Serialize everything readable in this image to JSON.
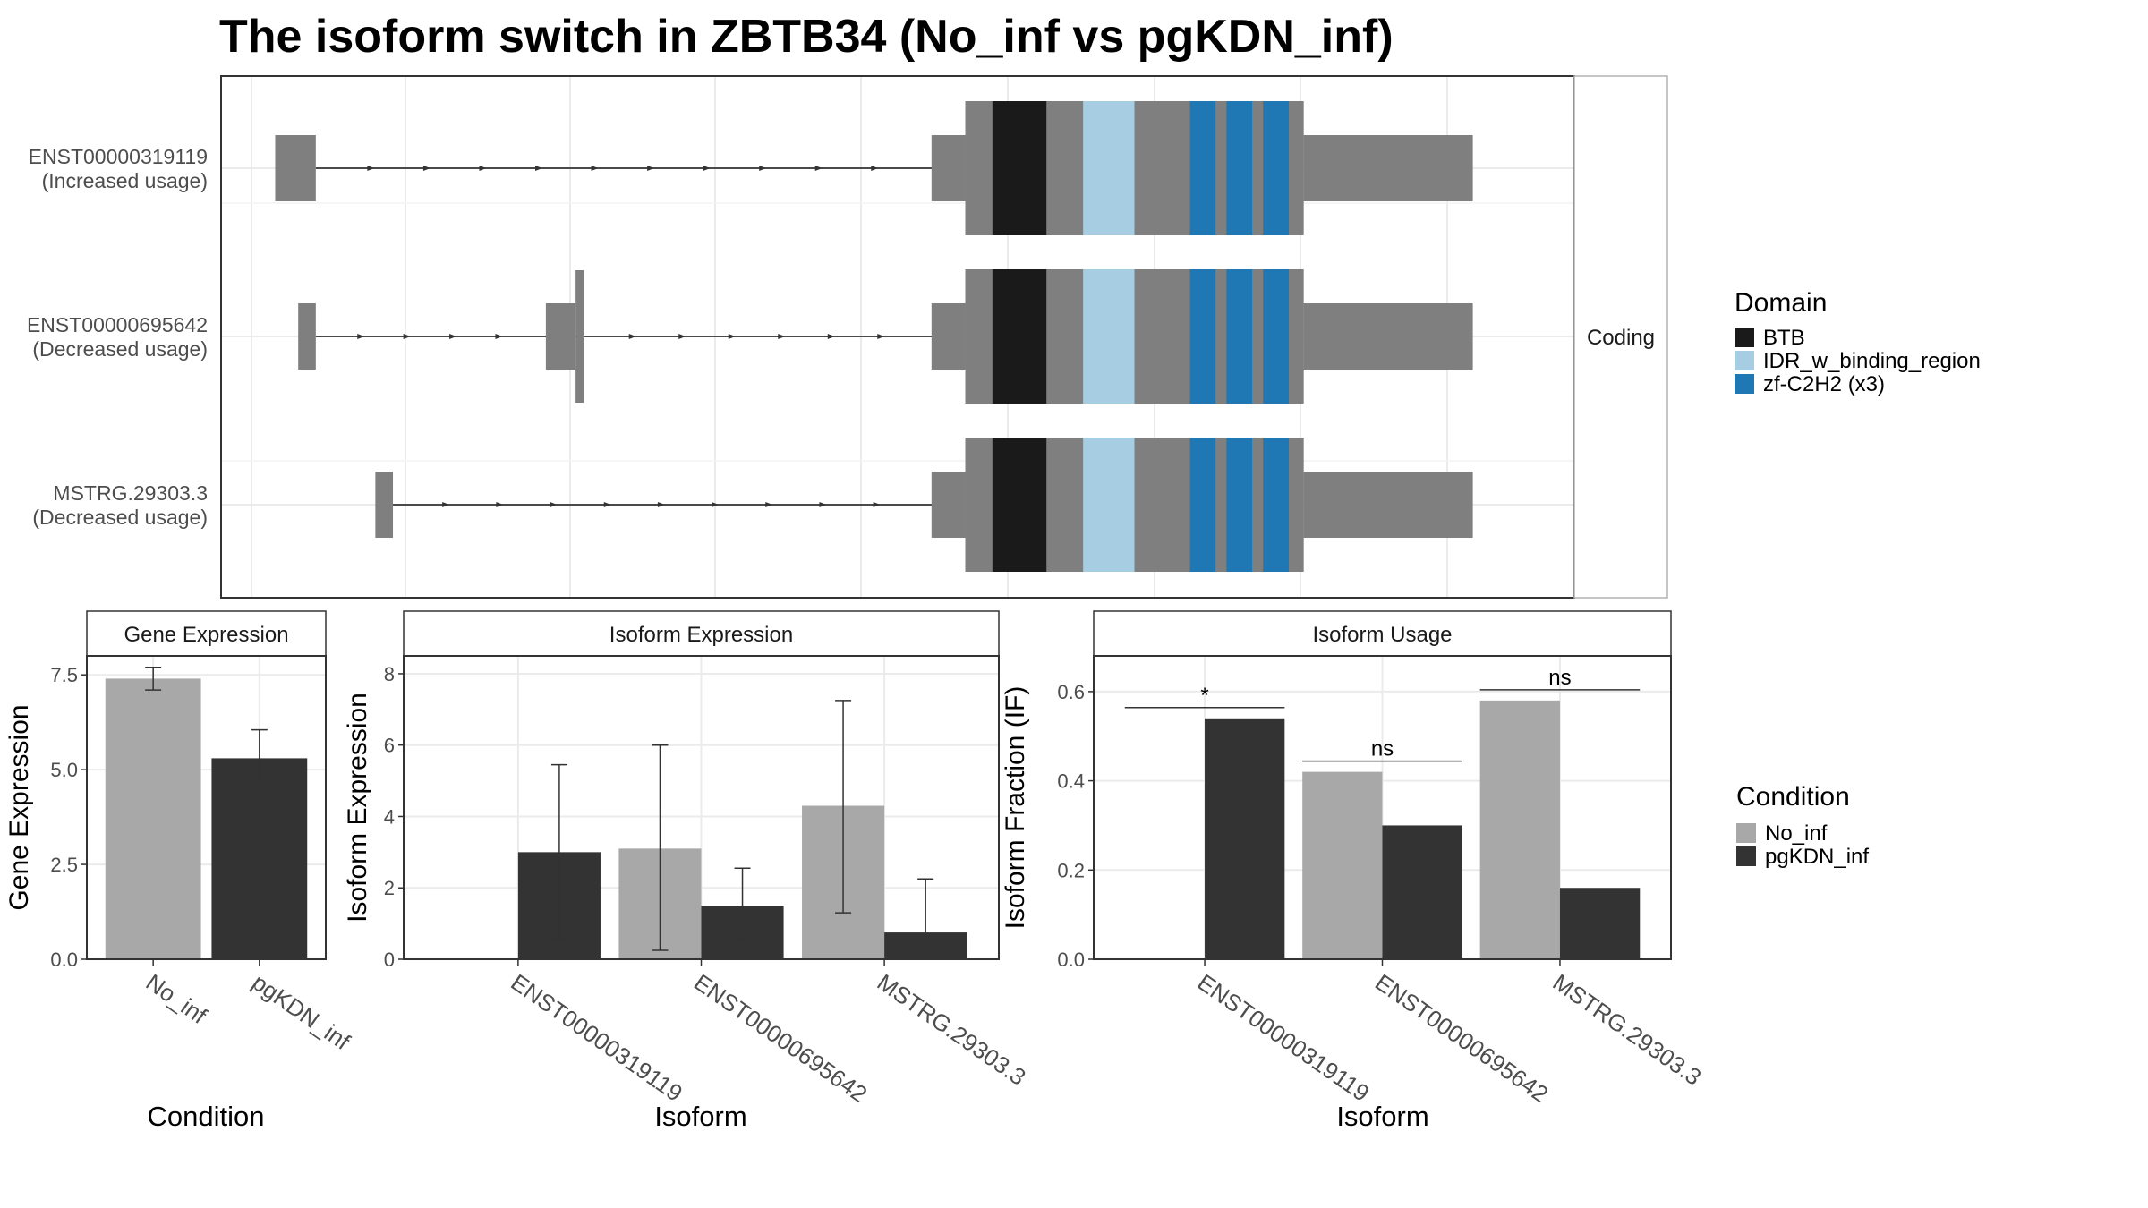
{
  "title": "The isoform switch in ZBTB34 (No_inf vs pgKDN_inf)",
  "colors": {
    "no_inf": "#a8a8a8",
    "pgkdn_inf": "#333333",
    "utr": "#7f7f7f",
    "btb": "#1a1a1a",
    "idr": "#a6cde2",
    "zf": "#1f78b4",
    "grid": "#ebebeb",
    "strip": "#ffffff",
    "border": "#333333"
  },
  "chart_data": [
    {
      "type": "gene_structure",
      "strip_label": "Coding",
      "legend_title": "Domain",
      "legend": [
        {
          "label": "BTB",
          "color": "#1a1a1a"
        },
        {
          "label": "IDR_w_binding_region",
          "color": "#a6cde2"
        },
        {
          "label": "zf-C2H2 (x3)",
          "color": "#1f78b4"
        }
      ],
      "isoforms": [
        {
          "id": "ENST00000319119",
          "usage": "(Increased usage)",
          "exons": [
            [
              0.04,
              0.07
            ],
            [
              0.525,
              0.55
            ],
            [
              0.55,
              0.925
            ]
          ]
        },
        {
          "id": "ENST00000695642",
          "usage": "(Decreased usage)",
          "exons": [
            [
              0.057,
              0.07
            ],
            [
              0.24,
              0.262
            ],
            [
              0.262,
              0.268
            ],
            [
              0.525,
              0.55
            ],
            [
              0.55,
              0.925
            ]
          ]
        },
        {
          "id": "MSTRG.29303.3",
          "usage": "(Decreased usage)",
          "exons": [
            [
              0.114,
              0.127
            ],
            [
              0.525,
              0.55
            ],
            [
              0.55,
              0.925
            ]
          ]
        }
      ]
    },
    {
      "type": "bar",
      "strip": "Gene Expression",
      "xlabel": "Condition",
      "ylabel": "Gene Expression",
      "categories": [
        "No_inf",
        "pgKDN_inf"
      ],
      "values": [
        7.4,
        5.3
      ],
      "error_low": [
        7.1,
        4.55
      ],
      "error_high": [
        7.7,
        6.05
      ],
      "ylim": [
        0,
        8
      ],
      "yticks": [
        "0.0",
        "2.5",
        "5.0",
        "7.5"
      ]
    },
    {
      "type": "bar",
      "strip": "Isoform Expression",
      "xlabel": "Isoform",
      "ylabel": "Isoform Expression",
      "categories": [
        "ENST00000319119",
        "ENST00000695642",
        "MSTRG.29303.3"
      ],
      "series": [
        {
          "name": "No_inf",
          "values": [
            0.0,
            3.1,
            4.3
          ],
          "error_low": [
            0.0,
            0.25,
            1.3
          ],
          "error_high": [
            0.0,
            6.0,
            7.25
          ]
        },
        {
          "name": "pgKDN_inf",
          "values": [
            3.0,
            1.5,
            0.75
          ],
          "error_low": [
            0.55,
            0.55,
            0.05
          ],
          "error_high": [
            5.45,
            2.55,
            2.25
          ]
        }
      ],
      "ylim": [
        0,
        8.5
      ],
      "yticks": [
        "0",
        "2",
        "4",
        "6",
        "8"
      ]
    },
    {
      "type": "bar",
      "strip": "Isoform Usage",
      "xlabel": "Isoform",
      "ylabel": "Isoform Fraction (IF)",
      "categories": [
        "ENST00000319119",
        "ENST00000695642",
        "MSTRG.29303.3"
      ],
      "series": [
        {
          "name": "No_inf",
          "values": [
            0.0,
            0.42,
            0.58
          ]
        },
        {
          "name": "pgKDN_inf",
          "values": [
            0.54,
            0.3,
            0.16
          ]
        }
      ],
      "significance": [
        "*",
        "ns",
        "ns"
      ],
      "ylim": [
        0,
        0.68
      ],
      "yticks": [
        "0.0",
        "0.2",
        "0.4",
        "0.6"
      ]
    }
  ],
  "condition_legend": {
    "title": "Condition",
    "items": [
      {
        "label": "No_inf",
        "color": "#a8a8a8"
      },
      {
        "label": "pgKDN_inf",
        "color": "#333333"
      }
    ]
  }
}
